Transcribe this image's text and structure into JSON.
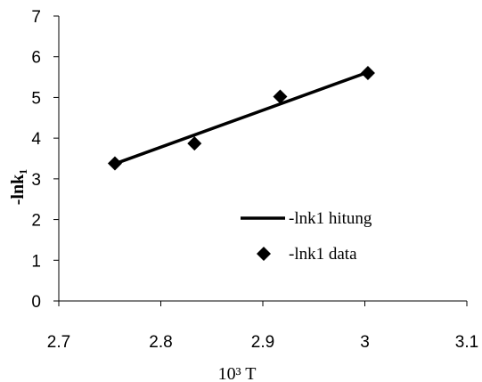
{
  "chart_data": {
    "type": "scatter",
    "title": "",
    "xlabel": "10³ T",
    "ylabel": "-lnk₁",
    "xlim": [
      2.7,
      3.1
    ],
    "ylim": [
      0,
      7
    ],
    "x_ticks": [
      "2.7",
      "2.8",
      "2.9",
      "3",
      "3.1"
    ],
    "y_ticks": [
      "0",
      "1",
      "2",
      "3",
      "4",
      "5",
      "6",
      "7"
    ],
    "grid": false,
    "legend_position": "lower-right",
    "series": [
      {
        "name": "-lnk1 hitung",
        "kind": "line",
        "color": "#000000",
        "x": [
          2.755,
          3.003
        ],
        "y": [
          3.37,
          5.62
        ]
      },
      {
        "name": "-lnk1 data",
        "kind": "scatter",
        "marker": "diamond",
        "color": "#000000",
        "x": [
          2.755,
          2.833,
          2.917,
          3.003
        ],
        "y": [
          3.38,
          3.87,
          5.02,
          5.6
        ]
      }
    ]
  }
}
